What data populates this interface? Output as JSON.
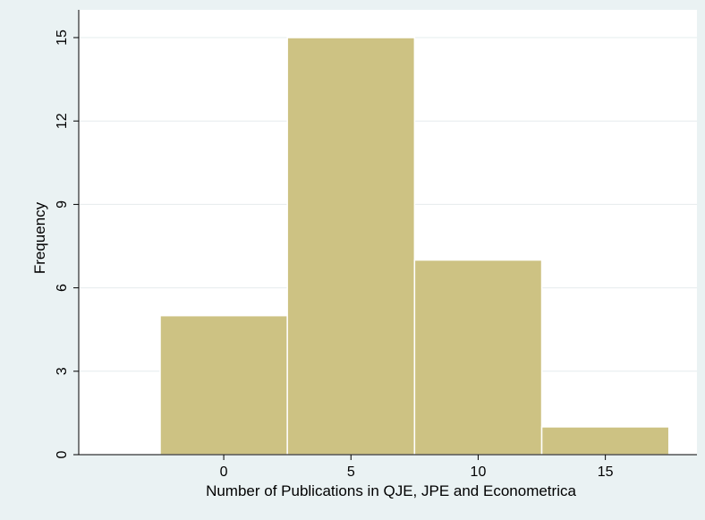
{
  "chart_data": {
    "type": "bar",
    "subtype": "histogram",
    "title": "",
    "xlabel": "Number of Publications in QJE, JPE and Econometrica",
    "ylabel": "Frequency",
    "bins": [
      {
        "start": -2.5,
        "end": 2.5,
        "value": 5
      },
      {
        "start": 2.5,
        "end": 7.5,
        "value": 15
      },
      {
        "start": 7.5,
        "end": 12.5,
        "value": 7
      },
      {
        "start": 12.5,
        "end": 17.5,
        "value": 1
      }
    ],
    "xlim": [
      -5.7,
      18.6
    ],
    "ylim": [
      0,
      15
    ],
    "xticks": [
      0,
      5,
      10,
      15
    ],
    "yticks": [
      0,
      3,
      6,
      9,
      12,
      15
    ],
    "grid": true,
    "legend": "none",
    "colors": {
      "bar_fill": "#cdc283",
      "bar_edge": "#ffffff",
      "plot_background": "#ffffff",
      "outer_background": "#eaf2f3",
      "gridline": "#e6eced",
      "axis": "#000000"
    }
  }
}
